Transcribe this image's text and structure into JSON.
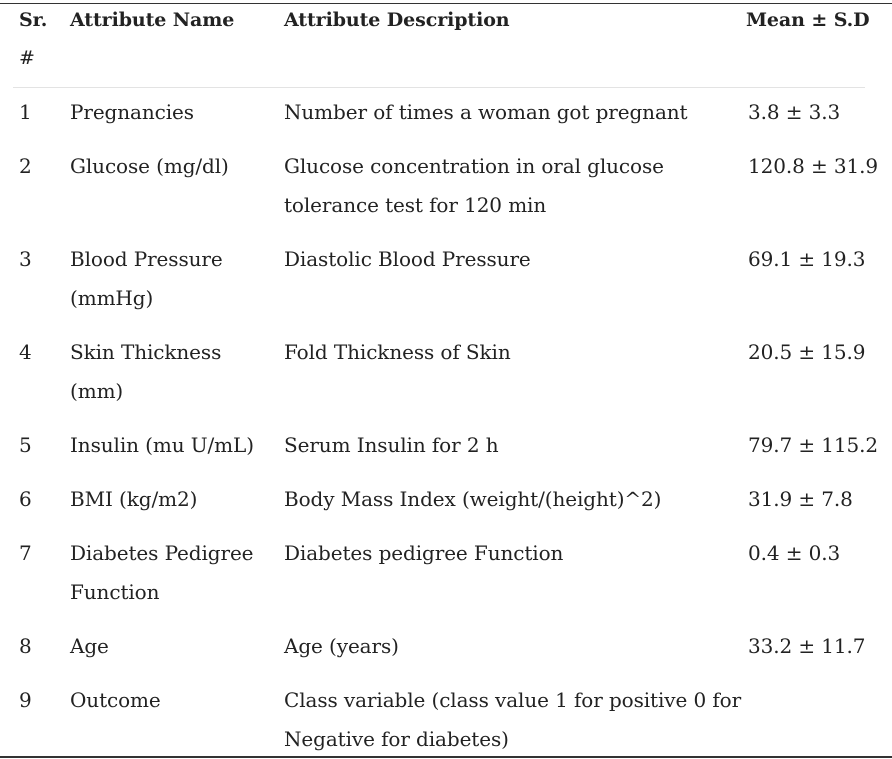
{
  "header": {
    "sr_line1": "Sr.",
    "sr_line2": "#",
    "name": "Attribute Name",
    "description": "Attribute Description",
    "mean": "Mean ± S.D"
  },
  "rows": [
    {
      "sr": "1",
      "name": [
        "Pregnancies"
      ],
      "description": [
        "Number of times a woman got pregnant"
      ],
      "mean": "3.8 ± 3.3"
    },
    {
      "sr": "2",
      "name": [
        "Glucose (mg/dl)"
      ],
      "description": [
        "Glucose concentration in oral glucose",
        "tolerance test for 120 min"
      ],
      "mean": "120.8 ± 31.9"
    },
    {
      "sr": "3",
      "name": [
        "Blood Pressure",
        "(mmHg)"
      ],
      "description": [
        "Diastolic Blood Pressure"
      ],
      "mean": "69.1 ± 19.3"
    },
    {
      "sr": "4",
      "name": [
        "Skin Thickness",
        "(mm)"
      ],
      "description": [
        "Fold Thickness of Skin"
      ],
      "mean": "20.5 ± 15.9"
    },
    {
      "sr": "5",
      "name": [
        "Insulin (mu U/mL)"
      ],
      "description": [
        "Serum Insulin for 2 h"
      ],
      "mean": "79.7 ± 115.2"
    },
    {
      "sr": "6",
      "name": [
        "BMI (kg/m2)"
      ],
      "description": [
        "Body Mass Index (weight/(height)^2)"
      ],
      "mean": "31.9 ± 7.8"
    },
    {
      "sr": "7",
      "name": [
        "Diabetes Pedigree",
        "Function"
      ],
      "description": [
        "Diabetes pedigree Function"
      ],
      "mean": "0.4 ± 0.3"
    },
    {
      "sr": "8",
      "name": [
        "Age"
      ],
      "description": [
        "Age (years)"
      ],
      "mean": "33.2 ± 11.7"
    },
    {
      "sr": "9",
      "name": [
        "Outcome"
      ],
      "description": [
        "Class variable (class value 1 for positive 0 for",
        "Negative for diabetes)"
      ],
      "mean": ""
    }
  ]
}
